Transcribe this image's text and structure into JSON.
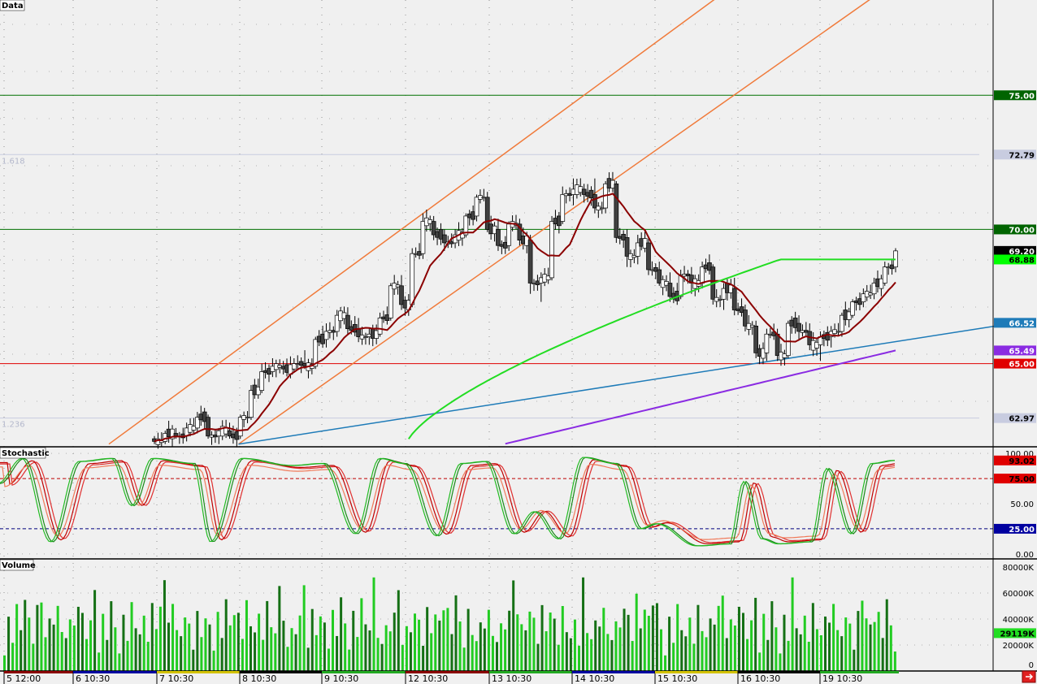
{
  "panes": {
    "price": {
      "label": "Data"
    },
    "stochastic": {
      "label": "Stochastic"
    },
    "volume": {
      "label": "Volume"
    }
  },
  "chart_data": [
    {
      "type": "candlestick",
      "pane": "Data",
      "ylim": [
        61.9,
        78.55
      ],
      "horizontal_lines": [
        {
          "value": 75.0,
          "color": "#007000"
        },
        {
          "value": 70.0,
          "color": "#007000"
        },
        {
          "value": 65.0,
          "color": "#e00000"
        },
        {
          "value": 72.79,
          "color": "#c8cce0",
          "label": "1.618"
        },
        {
          "value": 62.97,
          "color": "#c8cce0",
          "label": "1.236"
        }
      ],
      "price_tags": [
        {
          "text": "75.00",
          "value": 75.0,
          "bg": "#006400",
          "fg": "#ffffff"
        },
        {
          "text": "72.79",
          "value": 72.79,
          "bg": "#c8cce0",
          "fg": "#000000"
        },
        {
          "text": "70.00",
          "value": 70.0,
          "bg": "#006400",
          "fg": "#ffffff"
        },
        {
          "text": "69.20",
          "value": 69.2,
          "bg": "#000000",
          "fg": "#ffffff"
        },
        {
          "text": "68.88",
          "value": 68.88,
          "bg": "#00ff00",
          "fg": "#000000"
        },
        {
          "text": "66.52",
          "value": 66.52,
          "bg": "#1e7bb8",
          "fg": "#ffffff"
        },
        {
          "text": "65.49",
          "value": 65.49,
          "bg": "#8a2be2",
          "fg": "#ffffff"
        },
        {
          "text": "65.00",
          "value": 65.0,
          "bg": "#e00000",
          "fg": "#ffffff"
        },
        {
          "text": "62.97",
          "value": 62.97,
          "bg": "#c8cce0",
          "fg": "#000000"
        }
      ],
      "trend_lines": [
        {
          "color": "#f07a3a",
          "points": [
            [
              0.105,
              62.0
            ],
            [
              0.69,
              78.6
            ]
          ]
        },
        {
          "color": "#f07a3a",
          "points": [
            [
              0.23,
              62.0
            ],
            [
              0.84,
              78.6
            ]
          ]
        },
        {
          "color": "#1e7bb8",
          "points": [
            [
              0.23,
              62.0
            ],
            [
              0.98,
              66.52
            ]
          ]
        }
      ],
      "candles_ohlc_seed": [
        [
          62.2,
          62.3,
          62.0,
          62.1
        ],
        [
          62.1,
          62.5,
          62.0,
          62.4
        ],
        [
          62.4,
          62.6,
          62.2,
          62.3
        ],
        [
          62.3,
          62.8,
          62.1,
          62.6
        ],
        [
          62.6,
          63.2,
          62.4,
          63.0
        ],
        [
          63.0,
          63.1,
          62.2,
          62.3
        ],
        [
          62.3,
          62.6,
          62.0,
          62.5
        ],
        [
          62.5,
          62.8,
          62.2,
          62.3
        ],
        [
          62.3,
          63.1,
          62.2,
          63.0
        ],
        [
          63.0,
          64.2,
          62.9,
          64.0
        ],
        [
          64.0,
          65.0,
          63.9,
          64.7
        ],
        [
          64.7,
          65.2,
          64.5,
          64.9
        ],
        [
          64.9,
          65.1,
          64.6,
          64.8
        ],
        [
          64.8,
          65.2,
          64.7,
          65.0
        ],
        [
          65.0,
          65.5,
          64.8,
          64.9
        ],
        [
          64.9,
          66.0,
          64.8,
          65.9
        ],
        [
          65.9,
          66.5,
          65.6,
          66.2
        ],
        [
          66.2,
          67.0,
          66.0,
          66.8
        ],
        [
          66.8,
          67.1,
          66.1,
          66.3
        ],
        [
          66.3,
          66.7,
          65.8,
          66.0
        ],
        [
          66.0,
          66.3,
          65.7,
          66.1
        ],
        [
          66.1,
          66.9,
          66.0,
          66.7
        ],
        [
          66.7,
          68.0,
          66.6,
          67.9
        ],
        [
          67.9,
          68.3,
          67.0,
          67.2
        ],
        [
          67.2,
          69.3,
          67.1,
          69.1
        ],
        [
          69.1,
          70.6,
          68.9,
          70.3
        ],
        [
          70.3,
          70.5,
          69.6,
          69.8
        ],
        [
          69.8,
          70.0,
          69.2,
          69.5
        ],
        [
          69.5,
          70.0,
          69.3,
          69.8
        ],
        [
          69.8,
          70.6,
          69.7,
          70.5
        ],
        [
          70.5,
          71.3,
          70.3,
          71.2
        ],
        [
          71.2,
          71.4,
          69.9,
          70.0
        ],
        [
          70.0,
          70.4,
          69.2,
          69.4
        ],
        [
          69.4,
          70.3,
          69.2,
          70.2
        ],
        [
          70.2,
          70.4,
          69.4,
          69.6
        ],
        [
          69.6,
          69.8,
          67.6,
          68.0
        ],
        [
          68.0,
          68.4,
          67.3,
          68.2
        ],
        [
          68.2,
          70.5,
          68.1,
          70.3
        ],
        [
          70.3,
          71.6,
          70.2,
          71.3
        ],
        [
          71.3,
          71.9,
          70.9,
          71.5
        ],
        [
          71.5,
          71.7,
          71.0,
          71.3
        ],
        [
          71.3,
          71.9,
          70.6,
          70.8
        ],
        [
          70.8,
          71.8,
          70.6,
          71.7
        ],
        [
          71.7,
          71.8,
          69.5,
          69.7
        ],
        [
          69.7,
          70.0,
          68.6,
          69.0
        ],
        [
          69.0,
          69.8,
          68.7,
          69.5
        ],
        [
          69.5,
          69.7,
          68.3,
          68.5
        ],
        [
          68.5,
          68.8,
          67.9,
          68.0
        ],
        [
          68.0,
          68.4,
          67.3,
          67.5
        ],
        [
          67.5,
          68.5,
          67.4,
          68.3
        ],
        [
          68.3,
          68.6,
          67.6,
          68.0
        ],
        [
          68.0,
          68.8,
          67.8,
          68.6
        ],
        [
          68.6,
          68.7,
          67.2,
          67.4
        ],
        [
          67.4,
          68.0,
          67.0,
          67.8
        ],
        [
          67.8,
          68.2,
          66.8,
          67.0
        ],
        [
          67.0,
          67.2,
          66.2,
          66.4
        ],
        [
          66.4,
          66.6,
          65.2,
          65.4
        ],
        [
          65.4,
          66.3,
          65.1,
          66.1
        ],
        [
          66.1,
          66.3,
          65.1,
          65.3
        ],
        [
          65.3,
          66.6,
          65.2,
          66.5
        ],
        [
          66.5,
          66.8,
          65.9,
          66.2
        ],
        [
          66.2,
          66.5,
          65.5,
          65.7
        ],
        [
          65.7,
          66.2,
          65.1,
          66.0
        ],
        [
          66.0,
          66.4,
          65.6,
          66.2
        ],
        [
          66.2,
          66.9,
          66.0,
          66.8
        ],
        [
          66.8,
          67.4,
          66.7,
          67.3
        ],
        [
          67.3,
          67.8,
          67.1,
          67.6
        ],
        [
          67.6,
          68.2,
          67.4,
          68.0
        ],
        [
          68.0,
          68.8,
          67.9,
          68.6
        ],
        [
          68.6,
          69.3,
          68.4,
          69.2
        ]
      ],
      "moving_averages": [
        {
          "color": "#8b0000",
          "name": ""
        },
        {
          "color": "#22dd22",
          "name": ""
        },
        {
          "color": "#8a2be2",
          "name": ""
        }
      ]
    },
    {
      "type": "line",
      "pane": "Stochastic",
      "ylim": [
        -5,
        105
      ],
      "tick_labels": [
        "100.00",
        "75.00",
        "50.00",
        "25.00",
        "0.00"
      ],
      "tick_values": [
        100,
        75,
        50,
        25,
        0
      ],
      "levels": [
        {
          "value": 75,
          "color": "#c00000"
        },
        {
          "value": 25,
          "color": "#000080"
        }
      ],
      "price_tags": [
        {
          "text": "93.02",
          "value": 93.02,
          "bg": "#e00000",
          "fg": "#000000"
        },
        {
          "text": "75.00",
          "value": 75.0,
          "bg": "#e00000",
          "fg": "#000000"
        },
        {
          "text": "25.00",
          "value": 25.0,
          "bg": "#0000a0",
          "fg": "#ffffff"
        }
      ],
      "series_colors": [
        "#e03030",
        "#c00000",
        "#f07a5a",
        "#1a8a1a",
        "#22bb22"
      ]
    },
    {
      "type": "bar",
      "pane": "Volume",
      "ylim": [
        0,
        85000
      ],
      "tick_labels": [
        "80000K",
        "60000K",
        "40000K",
        "20000K",
        "0"
      ],
      "tick_values": [
        80000,
        60000,
        40000,
        20000,
        0
      ],
      "price_tags": [
        {
          "text": "29119K",
          "value": 29119,
          "bg": "#22dd22",
          "fg": "#000000"
        }
      ],
      "bar_color_up": "#22cc22",
      "bar_color_down": "#157015"
    }
  ],
  "x_axis": {
    "labels": [
      "5 12:00",
      "6 10:30",
      "7 10:30",
      "8 10:30",
      "9 10:30",
      "12 10:30",
      "13 10:30",
      "14 10:30",
      "15 10:30",
      "16 10:30",
      "19 10:30"
    ],
    "session_colors": [
      "#8b0000",
      "#0000a0",
      "#d4c200",
      "#000000",
      "#22aa22",
      "#8b0000",
      "#22aa22",
      "#0000a0",
      "#d4c200",
      "#000000",
      "#22aa22"
    ]
  },
  "corner_icon": "scroll-right-icon",
  "colors": {
    "background": "#f0f0f0",
    "grid": "#909090",
    "candle_up": "#ffffff",
    "candle_down": "#404040"
  }
}
